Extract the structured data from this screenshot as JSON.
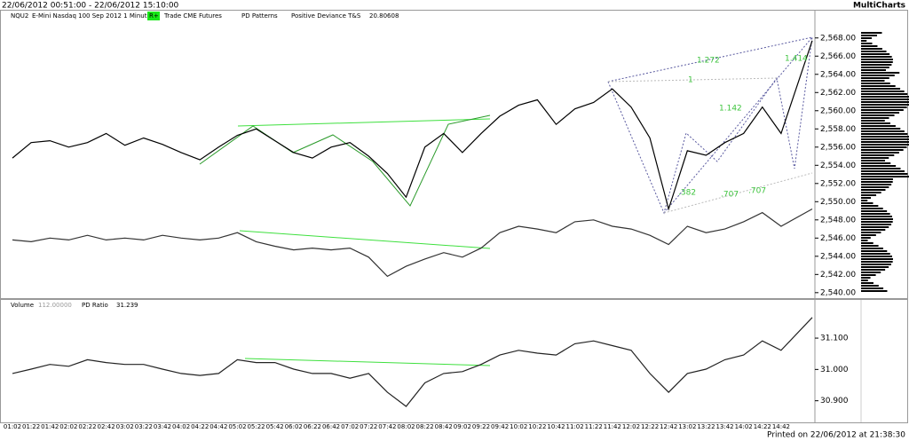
{
  "chart_data": {
    "type": "line",
    "title": "22/06/2012 00:51:00 - 22/06/2012 15:10:00",
    "brand": "MultiCharts",
    "footer": "Printed on 22/06/2012 at 21:38:30",
    "categories": [
      "01:02",
      "01:22",
      "01:42",
      "02:02",
      "02:22",
      "02:42",
      "03:02",
      "03:22",
      "03:42",
      "04:02",
      "04:22",
      "04:42",
      "05:02",
      "05:22",
      "05:42",
      "06:02",
      "06:22",
      "06:42",
      "07:02",
      "07:22",
      "07:42",
      "08:02",
      "08:22",
      "08:42",
      "09:02",
      "09:22",
      "09:42",
      "10:02",
      "10:22",
      "10:42",
      "11:02",
      "11:22",
      "11:42",
      "12:02",
      "12:22",
      "12:42",
      "13:02",
      "13:22",
      "13:42",
      "14:02",
      "14:22",
      "14:42",
      null
    ],
    "panels": [
      {
        "labels": [
          "NQU2",
          "E-Mini Nasdaq 100 Sep 2012  1 Minute",
          "R+",
          "Trade  CME  Futures",
          "PD Patterns",
          "Positive Deviance T&S",
          "20.80608"
        ],
        "annotations": [
          "1.272",
          "1.414",
          "1.142",
          "1",
          ".382",
          ".707",
          ".707"
        ],
        "ylim": [
          2539.3,
          2571
        ],
        "yticks": [
          {
            "value": 2540,
            "label": "2,540.00"
          },
          {
            "value": 2542,
            "label": "2,542.00"
          },
          {
            "value": 2544,
            "label": "2,544.00"
          },
          {
            "value": 2546,
            "label": "2,546.00"
          },
          {
            "value": 2548,
            "label": "2,548.00"
          },
          {
            "value": 2550,
            "label": "2,550.00"
          },
          {
            "value": 2552,
            "label": "2,552.00"
          },
          {
            "value": 2554,
            "label": "2,554.00"
          },
          {
            "value": 2556,
            "label": "2,556.00"
          },
          {
            "value": 2558,
            "label": "2,558.00"
          },
          {
            "value": 2560,
            "label": "2,560.00"
          },
          {
            "value": 2562,
            "label": "2,562.00"
          },
          {
            "value": 2564,
            "label": "2,564.00"
          },
          {
            "value": 2566,
            "label": "2,566.00"
          },
          {
            "value": 2568,
            "label": "2,568.00"
          }
        ],
        "series": [
          {
            "name": "NQU2",
            "color": "#000000",
            "values": [
              2554.8,
              2556.5,
              2556.7,
              2556,
              2556.5,
              2557.5,
              2556.2,
              2557,
              2556.3,
              2555.4,
              2554.6,
              2556,
              2557.3,
              2558,
              2556.7,
              2555.4,
              2554.8,
              2556,
              2556.5,
              2555,
              2553.1,
              2550.5,
              2556,
              2557.5,
              2555.4,
              2557.5,
              2559.4,
              2560.6,
              2561.2,
              2558.5,
              2560.2,
              2560.9,
              2562.4,
              2560.4,
              2557,
              2549.2,
              2555.6,
              2555.1,
              2556.5,
              2557.5,
              2560.4,
              2557.5,
              2567.7
            ]
          },
          {
            "name": "Positive Deviance T&S",
            "color": "#333333",
            "values": [
              2545.8,
              2545.6,
              2546.0,
              2545.8,
              2546.3,
              2545.8,
              2546.0,
              2545.8,
              2546.3,
              2546.0,
              2545.8,
              2546.0,
              2546.6,
              2545.6,
              2545.1,
              2544.7,
              2544.9,
              2544.7,
              2544.9,
              2543.9,
              2541.8,
              2542.9,
              2543.7,
              2544.4,
              2543.9,
              2544.9,
              2546.6,
              2547.3,
              2547.0,
              2546.6,
              2547.8,
              2548.0,
              2547.3,
              2547.0,
              2546.3,
              2545.3,
              2547.3,
              2546.6,
              2547.0,
              2547.8,
              2548.8,
              2547.3,
              2549.2
            ]
          }
        ]
      },
      {
        "labels": [
          "Volume",
          "112.00000",
          "PD Ratio",
          "31.239"
        ],
        "ylim": [
          30.831,
          31.222
        ],
        "yticks": [
          {
            "value": 30.9,
            "label": "30.900"
          },
          {
            "value": 31.0,
            "label": "31.000"
          },
          {
            "value": 31.1,
            "label": "31.100"
          }
        ],
        "series": [
          {
            "name": "PD Ratio",
            "color": "#222222",
            "values": [
              30.987,
              31.001,
              31.016,
              31.01,
              31.031,
              31.022,
              31.016,
              31.016,
              31.001,
              30.987,
              30.981,
              30.987,
              31.031,
              31.022,
              31.022,
              31.001,
              30.987,
              30.987,
              30.972,
              30.987,
              30.927,
              30.882,
              30.957,
              30.987,
              30.993,
              31.016,
              31.046,
              31.061,
              31.052,
              31.046,
              31.082,
              31.091,
              31.076,
              31.061,
              30.987,
              30.927,
              30.987,
              31.001,
              31.031,
              31.046,
              31.091,
              31.061,
              31.166
            ]
          }
        ]
      }
    ]
  }
}
